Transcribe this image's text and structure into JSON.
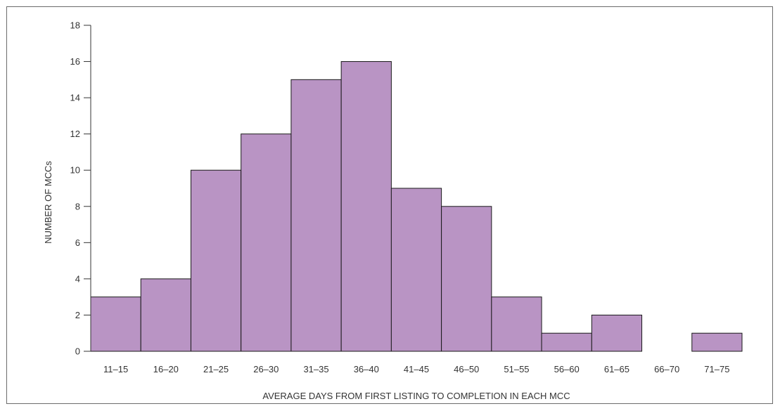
{
  "chart_data": {
    "type": "bar",
    "title": "",
    "xlabel": "AVERAGE DAYS FROM FIRST LISTING TO COMPLETION IN EACH MCC",
    "ylabel": "NUMBER OF MCCs",
    "categories": [
      "11–15",
      "16–20",
      "21–25",
      "26–30",
      "31–35",
      "36–40",
      "41–45",
      "46–50",
      "51–55",
      "56–60",
      "61–65",
      "66–70",
      "71–75"
    ],
    "values": [
      3,
      4,
      10,
      12,
      15,
      16,
      9,
      8,
      3,
      1,
      2,
      0,
      1
    ],
    "ylim": [
      0,
      18
    ],
    "yticks": [
      0,
      2,
      4,
      6,
      8,
      10,
      12,
      14,
      16,
      18
    ],
    "grid": false,
    "legend": "none",
    "bar_color": "#b994c4",
    "bar_edge_color": "#1a1a1a"
  }
}
